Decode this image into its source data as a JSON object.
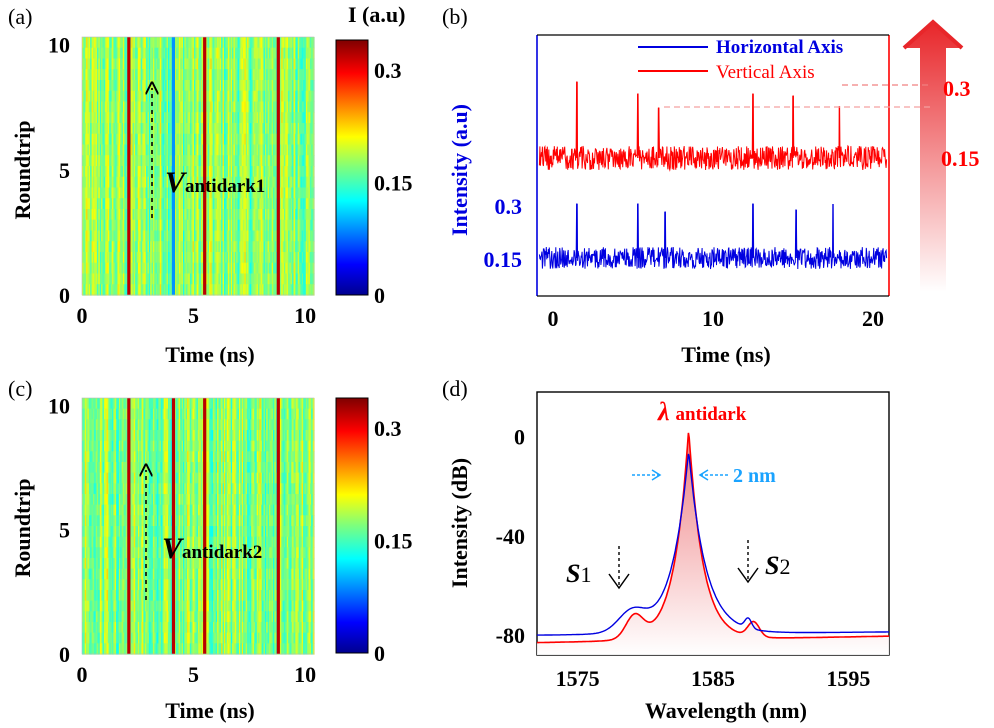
{
  "chart_data": [
    {
      "panel": "(a)",
      "type": "heatmap",
      "xlabel": "Time (ns)",
      "ylabel": "Roundtrip",
      "xticks": [
        "0",
        "5",
        "10"
      ],
      "yticks": [
        "0",
        "5",
        "10"
      ],
      "xlim": [
        0,
        10.4
      ],
      "ylim": [
        0,
        10.3
      ],
      "colorbar_title": "I (a.u)",
      "colorbar_ticks": [
        "0.3",
        "0.15",
        "0"
      ],
      "colorbar_range": [
        0,
        0.34
      ],
      "bright_stripes_ns": [
        2.1,
        5.5,
        8.8
      ],
      "dim_stripes_ns": [
        4.1
      ],
      "annotation": {
        "main": "V",
        "sub": "antidark1"
      }
    },
    {
      "panel": "(b)",
      "type": "line",
      "xlabel": "Time (ns)",
      "ylabel": "Intensity (a.u)",
      "xticks": [
        "0",
        "10",
        "20"
      ],
      "xlim": [
        -1,
        21
      ],
      "series": [
        {
          "name": "Horizontal Axis",
          "color": "#0000e0",
          "spike_times_ns": [
            1.5,
            5.3,
            7.0,
            12.5,
            15.2,
            17.5
          ],
          "left_ticks": [
            "0.3",
            "0.15"
          ]
        },
        {
          "name": "Vertical Axis",
          "color": "#ff0000",
          "spike_times_ns": [
            1.5,
            5.3,
            6.6,
            12.5,
            15.0,
            17.9
          ],
          "right_ticks": [
            "0.3",
            "0.15"
          ]
        }
      ]
    },
    {
      "panel": "(c)",
      "type": "heatmap",
      "xlabel": "Time (ns)",
      "ylabel": "Roundtrip",
      "xticks": [
        "0",
        "5",
        "10"
      ],
      "yticks": [
        "0",
        "5",
        "10"
      ],
      "xlim": [
        0,
        10.4
      ],
      "ylim": [
        0,
        10.3
      ],
      "colorbar_ticks": [
        "0.3",
        "0.15",
        "0"
      ],
      "colorbar_range": [
        0,
        0.34
      ],
      "bright_stripes_ns": [
        2.1,
        4.1,
        5.5,
        8.8
      ],
      "annotation": {
        "main": "V",
        "sub": "antidark2"
      }
    },
    {
      "panel": "(d)",
      "type": "line",
      "xlabel": "Wavelength (nm)",
      "ylabel": "Intensity (dB)",
      "xticks": [
        "1575",
        "1585",
        "1595"
      ],
      "yticks": [
        "0",
        "-40",
        "-80"
      ],
      "xlim": [
        1572,
        1598
      ],
      "ylim": [
        -88,
        18
      ],
      "series": [
        {
          "color": "#ff0000",
          "peak_nm": 1583.2,
          "peak_db": 2
        },
        {
          "color": "#0000e0",
          "peak_nm": 1583.2,
          "peak_db": -7
        }
      ],
      "annotations": {
        "peak": {
          "main": "λ",
          "sub": "antidark"
        },
        "width": "2 nm",
        "s1": {
          "main": "S",
          "sub": "1"
        },
        "s2": {
          "main": "S",
          "sub": "2"
        }
      }
    }
  ]
}
